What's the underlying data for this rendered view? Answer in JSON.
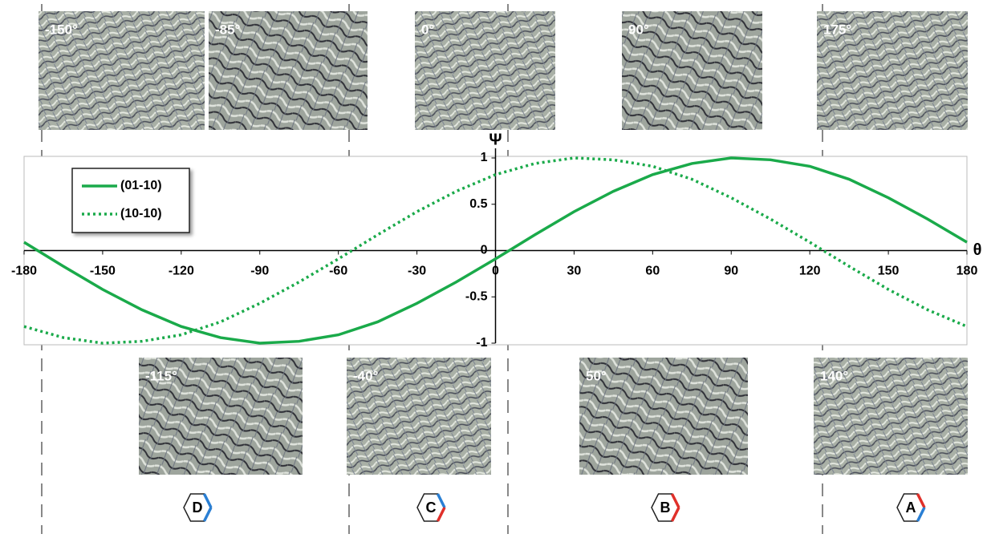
{
  "chart_data": {
    "type": "line",
    "x_label": "θ",
    "y_label": "Ψ",
    "x": [
      -180,
      -165,
      -150,
      -135,
      -120,
      -105,
      -90,
      -75,
      -60,
      -45,
      -30,
      -15,
      0,
      15,
      30,
      45,
      60,
      75,
      90,
      105,
      120,
      135,
      150,
      165,
      180
    ],
    "series": [
      {
        "name": "(01-10)",
        "color": "#1aaa4a",
        "dash": "solid",
        "values": [
          0.09,
          -0.17,
          -0.42,
          -0.64,
          -0.82,
          -0.94,
          -1.0,
          -0.98,
          -0.91,
          -0.77,
          -0.57,
          -0.34,
          -0.09,
          0.17,
          0.42,
          0.64,
          0.82,
          0.94,
          1.0,
          0.98,
          0.91,
          0.77,
          0.57,
          0.34,
          0.09
        ]
      },
      {
        "name": "(10-10)",
        "color": "#1aaa4a",
        "dash": "dotted",
        "values": [
          -0.82,
          -0.94,
          -1.0,
          -0.98,
          -0.91,
          -0.77,
          -0.57,
          -0.34,
          -0.09,
          0.17,
          0.42,
          0.64,
          0.82,
          0.94,
          1.0,
          0.98,
          0.91,
          0.77,
          0.57,
          0.34,
          0.09,
          -0.17,
          -0.42,
          -0.64,
          -0.82
        ]
      }
    ],
    "xlim": [
      -180,
      180
    ],
    "ylim": [
      -1,
      1
    ],
    "xticks": [
      -180,
      -150,
      -120,
      -90,
      -60,
      -30,
      0,
      30,
      60,
      90,
      120,
      150,
      180
    ],
    "yticks": [
      -1,
      -0.5,
      0,
      0.5,
      1
    ],
    "legend": "upper left"
  },
  "panels": [
    {
      "label": "-150°"
    },
    {
      "label": "-85°"
    },
    {
      "label": "0°"
    },
    {
      "label": "90°"
    },
    {
      "label": "175°"
    },
    {
      "label": "-115°"
    },
    {
      "label": "-40°"
    },
    {
      "label": "50°"
    },
    {
      "label": "140°"
    }
  ],
  "badges": [
    "D",
    "C",
    "B",
    "A"
  ]
}
